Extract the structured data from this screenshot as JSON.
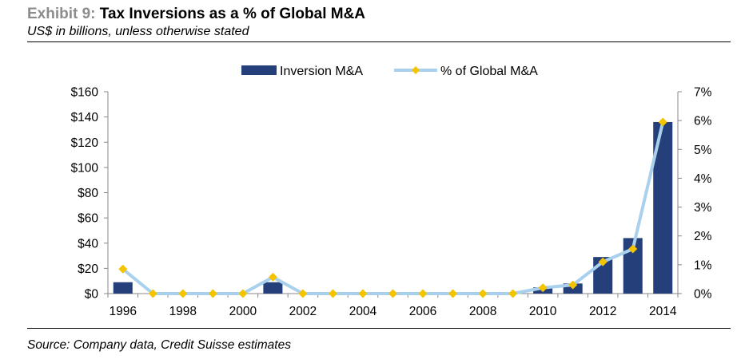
{
  "header": {
    "exhibit": "Exhibit 9:",
    "title": "Tax Inversions as a % of Global M&A",
    "subtitle": "US$ in billions, unless otherwise stated"
  },
  "source": "Source: Company data, Credit Suisse estimates",
  "colors": {
    "bar": "#243f7a",
    "line": "#a9d0ec",
    "marker": "#f4c400",
    "exhibit_label": "#8c8c8c"
  },
  "chart_data": {
    "type": "bar",
    "categories": [
      "1996",
      "1997",
      "1998",
      "1999",
      "2000",
      "2001",
      "2002",
      "2003",
      "2004",
      "2005",
      "2006",
      "2007",
      "2008",
      "2009",
      "2010",
      "2011",
      "2012",
      "2013",
      "2014"
    ],
    "x_tick_labels": [
      "1996",
      "",
      "1998",
      "",
      "2000",
      "",
      "2002",
      "",
      "2004",
      "",
      "2006",
      "",
      "2008",
      "",
      "2010",
      "",
      "2012",
      "",
      "2014"
    ],
    "series": [
      {
        "name": "Inversion M&A",
        "type": "bar",
        "axis": "left",
        "values": [
          9,
          0,
          0,
          0,
          0,
          9,
          0,
          0,
          0,
          0,
          0,
          0,
          0,
          0,
          5,
          8,
          29,
          44,
          136
        ]
      },
      {
        "name": "% of Global M&A",
        "type": "line",
        "axis": "right",
        "values": [
          0.85,
          0,
          0,
          0,
          0,
          0.57,
          0,
          0,
          0,
          0,
          0,
          0,
          0,
          0,
          0.2,
          0.3,
          1.1,
          1.55,
          5.95
        ]
      }
    ],
    "y_left": {
      "min": 0,
      "max": 160,
      "step": 20,
      "tick_labels": [
        "$0",
        "$20",
        "$40",
        "$60",
        "$80",
        "$100",
        "$120",
        "$140",
        "$160"
      ]
    },
    "y_right": {
      "min": 0,
      "max": 7,
      "step": 1,
      "tick_labels": [
        "0%",
        "1%",
        "2%",
        "3%",
        "4%",
        "5%",
        "6%",
        "7%"
      ]
    },
    "legend": {
      "position": "top-center",
      "entries": [
        "Inversion M&A",
        "% of Global M&A"
      ]
    },
    "grid": false
  }
}
